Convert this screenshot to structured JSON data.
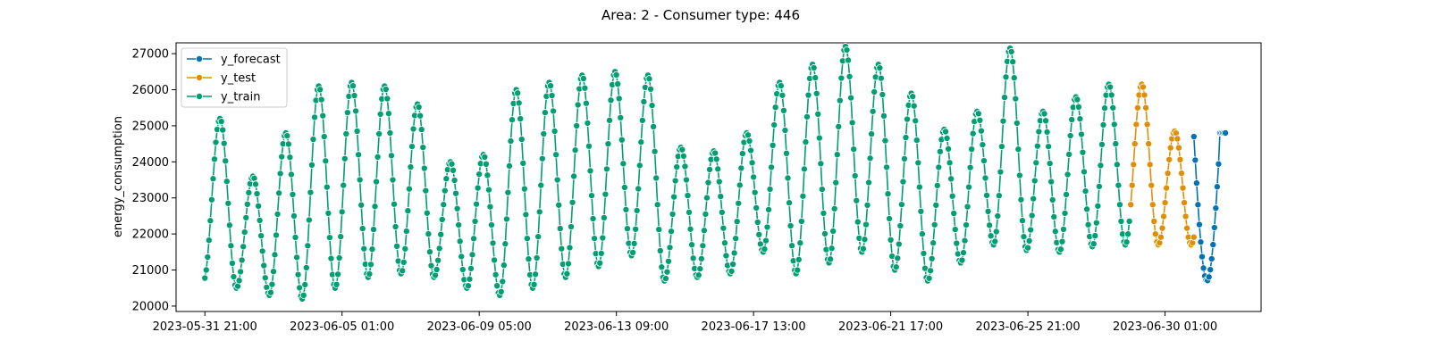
{
  "chart_data": {
    "type": "line",
    "title": "Area: 2 - Consumer type: 446",
    "xlabel": "",
    "ylabel": "energy_consumption",
    "x_start": "2023-05-31 21:00",
    "x_step": "1 hour",
    "xlim": [
      "2023-05-31 00:00",
      "2023-07-02 23:00"
    ],
    "ylim": [
      19850,
      27300
    ],
    "yticks": [
      20000,
      21000,
      22000,
      23000,
      24000,
      25000,
      26000,
      27000
    ],
    "xticks": [
      "2023-05-31 21:00",
      "2023-06-05 01:00",
      "2023-06-09 05:00",
      "2023-06-13 09:00",
      "2023-06-17 13:00",
      "2023-06-21 17:00",
      "2023-06-25 21:00",
      "2023-06-30 01:00"
    ],
    "grid": false,
    "legend_position": "top-left",
    "daily_profile": {
      "peak_hour": 8,
      "trough_hour": 20,
      "day_peaks": [
        25200,
        23600,
        24800,
        26100,
        26200,
        26100,
        25600,
        24000,
        24200,
        26000,
        26200,
        26400,
        26500,
        26400,
        24400,
        24300,
        24800,
        26200,
        26700,
        27200,
        26700,
        25900,
        24900,
        25400,
        27150,
        25400,
        25800,
        26150
      ],
      "day_troughs": [
        20700,
        20500,
        20300,
        20200,
        20500,
        20800,
        20900,
        20800,
        20500,
        20300,
        20500,
        20800,
        21100,
        21400,
        20700,
        20800,
        20900,
        21500,
        20900,
        21200,
        21500,
        21000,
        20700,
        21200,
        21700,
        21550,
        21500,
        21650
      ],
      "day_peaks_test": [
        26150,
        24850
      ],
      "day_troughs_test": [
        21700
      ]
    },
    "series": [
      {
        "name": "y_forecast",
        "color": "#0173b2",
        "start": "2023-06-30 22:00",
        "end": "2023-07-01 21:00",
        "points": 24
      },
      {
        "name": "y_test",
        "color": "#de8f05",
        "start": "2023-06-29 00:00",
        "end": "2023-06-30 22:00",
        "points": 47
      },
      {
        "name": "y_train",
        "color": "#029e73",
        "start": "2023-05-31 21:00",
        "end": "2023-06-28 23:00",
        "points": 675
      }
    ]
  }
}
